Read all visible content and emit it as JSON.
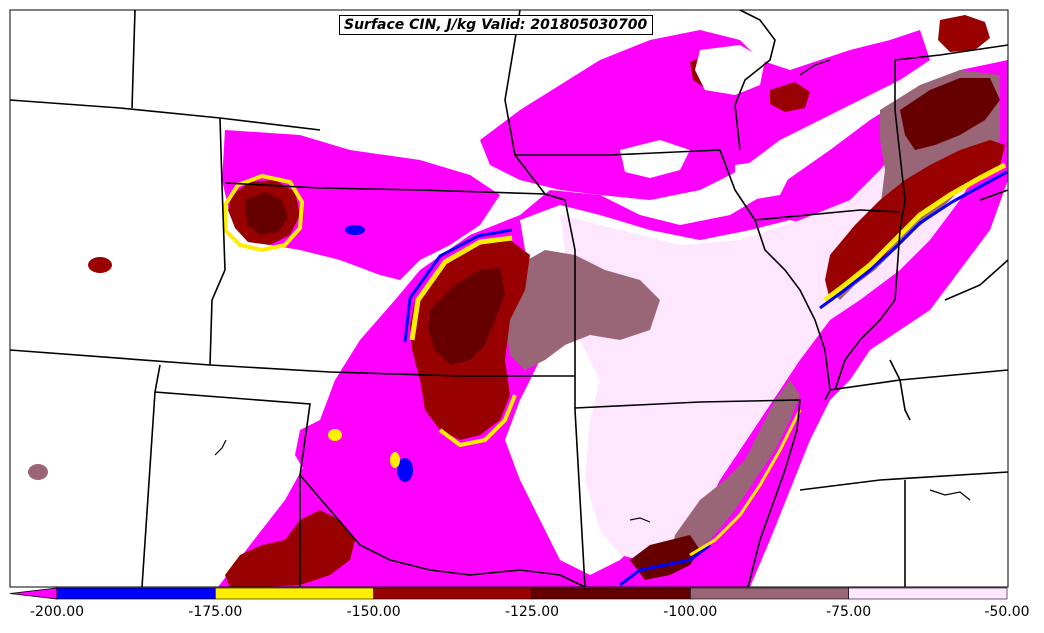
{
  "title": "Surface CIN, J/kg Valid: 201805030700",
  "colorbar": {
    "ticks": [
      "-200.00",
      "-175.00",
      "-150.00",
      "-125.00",
      "-100.00",
      "-75.00",
      "-50.00"
    ],
    "bins": [
      {
        "range": "< -200",
        "color": "#ff00ff"
      },
      {
        "range": "-200 to -175",
        "color": "#0000ff"
      },
      {
        "range": "-175 to -150",
        "color": "#ffee00"
      },
      {
        "range": "-150 to -125",
        "color": "#990000"
      },
      {
        "range": "-125 to -100",
        "color": "#660000"
      },
      {
        "range": "-100 to -75",
        "color": "#996677"
      },
      {
        "range": "-75 to -50",
        "color": "#ffe6ff"
      }
    ]
  }
}
